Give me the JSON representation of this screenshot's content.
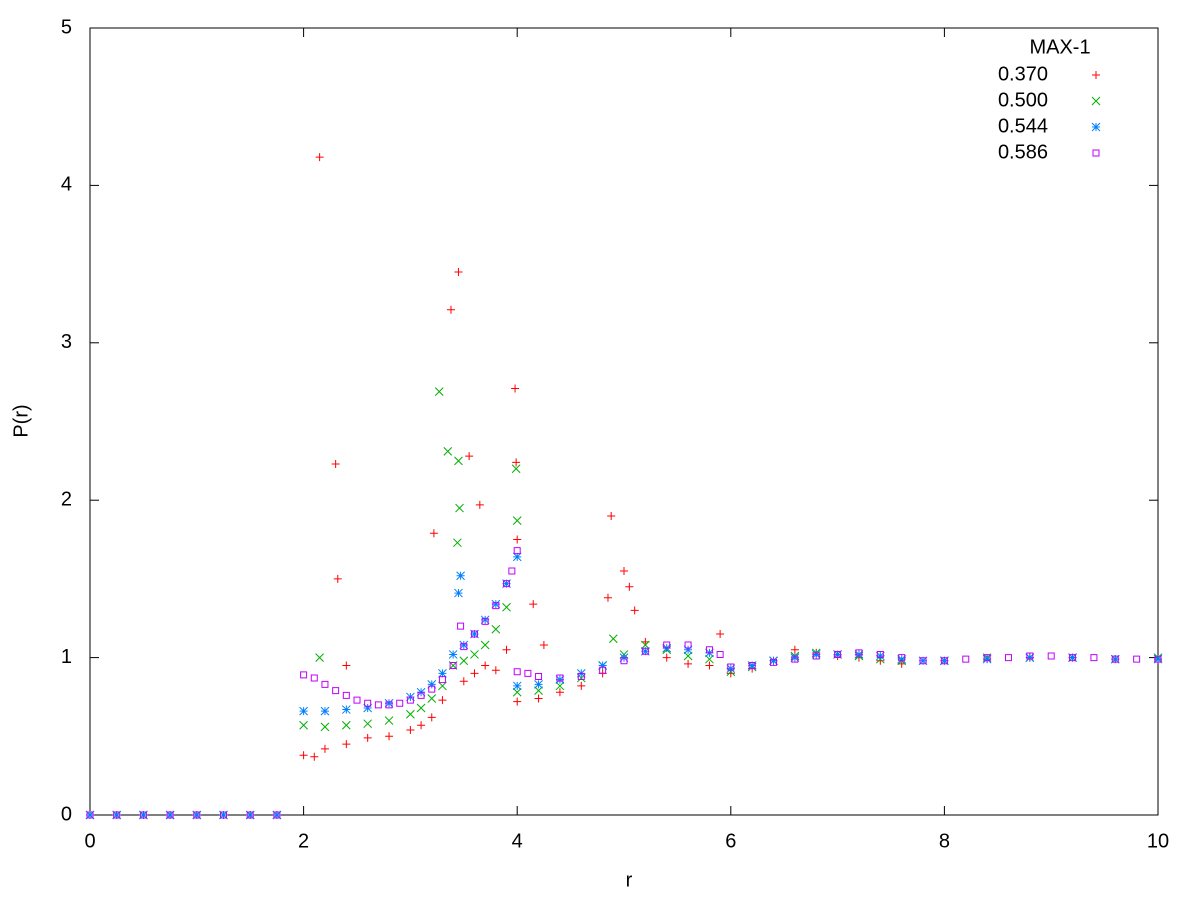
{
  "chart_data": {
    "type": "scatter",
    "xlabel": "r",
    "ylabel": "P(r)",
    "xlim": [
      0,
      10
    ],
    "ylim": [
      0,
      5
    ],
    "xticks": [
      0,
      2,
      4,
      6,
      8,
      10
    ],
    "yticks": [
      0,
      1,
      2,
      3,
      4,
      5
    ],
    "legend_title": "MAX-1",
    "legend": "top right",
    "series": [
      {
        "name": "0.370",
        "color": "#ff0000",
        "marker": "plus",
        "x": [
          0,
          0.25,
          0.5,
          0.75,
          1,
          1.25,
          1.5,
          1.75,
          2.0,
          2.1,
          2.15,
          2.2,
          2.3,
          2.32,
          2.4,
          2.4,
          2.6,
          2.8,
          3.0,
          3.1,
          3.2,
          3.22,
          3.3,
          3.38,
          3.45,
          3.5,
          3.55,
          3.6,
          3.65,
          3.7,
          3.8,
          3.9,
          3.98,
          3.99,
          4.0,
          4.0,
          4.15,
          4.2,
          4.25,
          4.4,
          4.6,
          4.8,
          4.85,
          4.88,
          5.0,
          5.05,
          5.1,
          5.2,
          5.4,
          5.6,
          5.8,
          5.9,
          6.0,
          6.2,
          6.4,
          6.6,
          6.8,
          7.0,
          7.2,
          7.4,
          7.6,
          8.0,
          8.4,
          8.8,
          9.2,
          9.6,
          10.0
        ],
        "values": [
          0,
          0,
          0,
          0,
          0,
          0,
          0,
          0,
          0.38,
          0.37,
          4.18,
          0.42,
          2.23,
          1.5,
          0.95,
          0.45,
          0.49,
          0.5,
          0.54,
          0.57,
          0.62,
          1.79,
          0.73,
          3.21,
          3.45,
          0.85,
          2.28,
          0.9,
          1.97,
          0.95,
          0.92,
          1.05,
          2.71,
          2.24,
          1.75,
          0.72,
          1.34,
          0.74,
          1.08,
          0.78,
          0.82,
          0.9,
          1.38,
          1.9,
          1.55,
          1.45,
          1.3,
          1.1,
          1.0,
          0.96,
          0.95,
          1.15,
          0.9,
          0.93,
          0.98,
          1.05,
          1.03,
          1.01,
          1.0,
          0.98,
          0.96,
          0.98,
          0.99,
          1.0,
          1.0,
          0.99,
          0.99
        ]
      },
      {
        "name": "0.500",
        "color": "#00b000",
        "marker": "cross",
        "x": [
          0,
          0.25,
          0.5,
          0.75,
          1,
          1.25,
          1.5,
          1.75,
          2.0,
          2.15,
          2.2,
          2.4,
          2.6,
          2.8,
          3.0,
          3.1,
          3.2,
          3.27,
          3.3,
          3.35,
          3.4,
          3.44,
          3.45,
          3.46,
          3.5,
          3.6,
          3.7,
          3.8,
          3.9,
          3.99,
          4.0,
          4.0,
          4.2,
          4.4,
          4.6,
          4.8,
          4.9,
          5.0,
          5.2,
          5.4,
          5.6,
          5.8,
          6.0,
          6.2,
          6.4,
          6.6,
          6.8,
          7.0,
          7.2,
          7.4,
          7.6,
          8.0,
          8.4,
          8.8,
          9.2,
          9.6,
          10.0
        ],
        "values": [
          0,
          0,
          0,
          0,
          0,
          0,
          0,
          0,
          0.57,
          1.0,
          0.56,
          0.57,
          0.58,
          0.6,
          0.64,
          0.68,
          0.74,
          2.69,
          0.82,
          2.31,
          0.95,
          1.73,
          2.25,
          1.95,
          0.98,
          1.02,
          1.08,
          1.18,
          1.32,
          2.2,
          1.87,
          0.78,
          0.79,
          0.82,
          0.87,
          0.95,
          1.12,
          1.02,
          1.08,
          1.05,
          1.01,
          0.99,
          0.91,
          0.94,
          0.98,
          1.01,
          1.03,
          1.02,
          1.01,
          0.99,
          0.98,
          0.98,
          1.0,
          1.0,
          1.0,
          0.99,
          1.0
        ]
      },
      {
        "name": "0.544",
        "color": "#0080ff",
        "marker": "star",
        "x": [
          0,
          0.25,
          0.5,
          0.75,
          1,
          1.25,
          1.5,
          1.75,
          2.0,
          2.2,
          2.4,
          2.6,
          2.8,
          3.0,
          3.1,
          3.2,
          3.3,
          3.4,
          3.45,
          3.47,
          3.5,
          3.6,
          3.7,
          3.8,
          3.9,
          4.0,
          4.0,
          4.2,
          4.4,
          4.6,
          4.8,
          5.0,
          5.2,
          5.4,
          5.6,
          5.8,
          6.0,
          6.2,
          6.4,
          6.6,
          6.8,
          7.0,
          7.2,
          7.4,
          7.6,
          7.8,
          8.0,
          8.4,
          8.8,
          9.2,
          9.6,
          10.0
        ],
        "values": [
          0,
          0,
          0,
          0,
          0,
          0,
          0,
          0,
          0.66,
          0.66,
          0.67,
          0.68,
          0.71,
          0.75,
          0.78,
          0.83,
          0.9,
          1.02,
          1.41,
          1.52,
          1.08,
          1.15,
          1.24,
          1.34,
          1.47,
          1.64,
          0.82,
          0.83,
          0.86,
          0.9,
          0.95,
          1.0,
          1.04,
          1.06,
          1.05,
          1.03,
          0.93,
          0.95,
          0.98,
          1.0,
          1.02,
          1.02,
          1.02,
          1.01,
          0.99,
          0.98,
          0.98,
          0.99,
          1.0,
          1.0,
          0.99,
          0.99
        ]
      },
      {
        "name": "0.586",
        "color": "#c000ff",
        "marker": "square",
        "x": [
          0,
          0.25,
          0.5,
          0.75,
          1,
          1.25,
          1.5,
          1.75,
          2.0,
          2.1,
          2.2,
          2.3,
          2.4,
          2.5,
          2.6,
          2.7,
          2.8,
          2.9,
          3.0,
          3.1,
          3.2,
          3.3,
          3.4,
          3.47,
          3.5,
          3.6,
          3.7,
          3.8,
          3.9,
          3.95,
          4.0,
          4.0,
          4.1,
          4.2,
          4.4,
          4.6,
          4.8,
          5.0,
          5.2,
          5.4,
          5.6,
          5.8,
          5.9,
          6.0,
          6.2,
          6.4,
          6.6,
          6.8,
          7.0,
          7.2,
          7.4,
          7.6,
          7.8,
          8.0,
          8.2,
          8.4,
          8.6,
          8.8,
          9.0,
          9.2,
          9.4,
          9.6,
          9.8,
          10.0
        ],
        "values": [
          0,
          0,
          0,
          0,
          0,
          0,
          0,
          0,
          0.89,
          0.87,
          0.83,
          0.79,
          0.76,
          0.73,
          0.71,
          0.7,
          0.7,
          0.71,
          0.73,
          0.76,
          0.8,
          0.86,
          0.95,
          1.2,
          1.07,
          1.15,
          1.23,
          1.33,
          1.47,
          1.55,
          1.68,
          0.91,
          0.9,
          0.88,
          0.87,
          0.88,
          0.92,
          0.98,
          1.04,
          1.08,
          1.08,
          1.05,
          1.02,
          0.94,
          0.95,
          0.97,
          0.99,
          1.01,
          1.02,
          1.03,
          1.02,
          1.0,
          0.98,
          0.98,
          0.99,
          1.0,
          1.0,
          1.01,
          1.01,
          1.0,
          1.0,
          0.99,
          0.99,
          0.99
        ]
      }
    ]
  }
}
